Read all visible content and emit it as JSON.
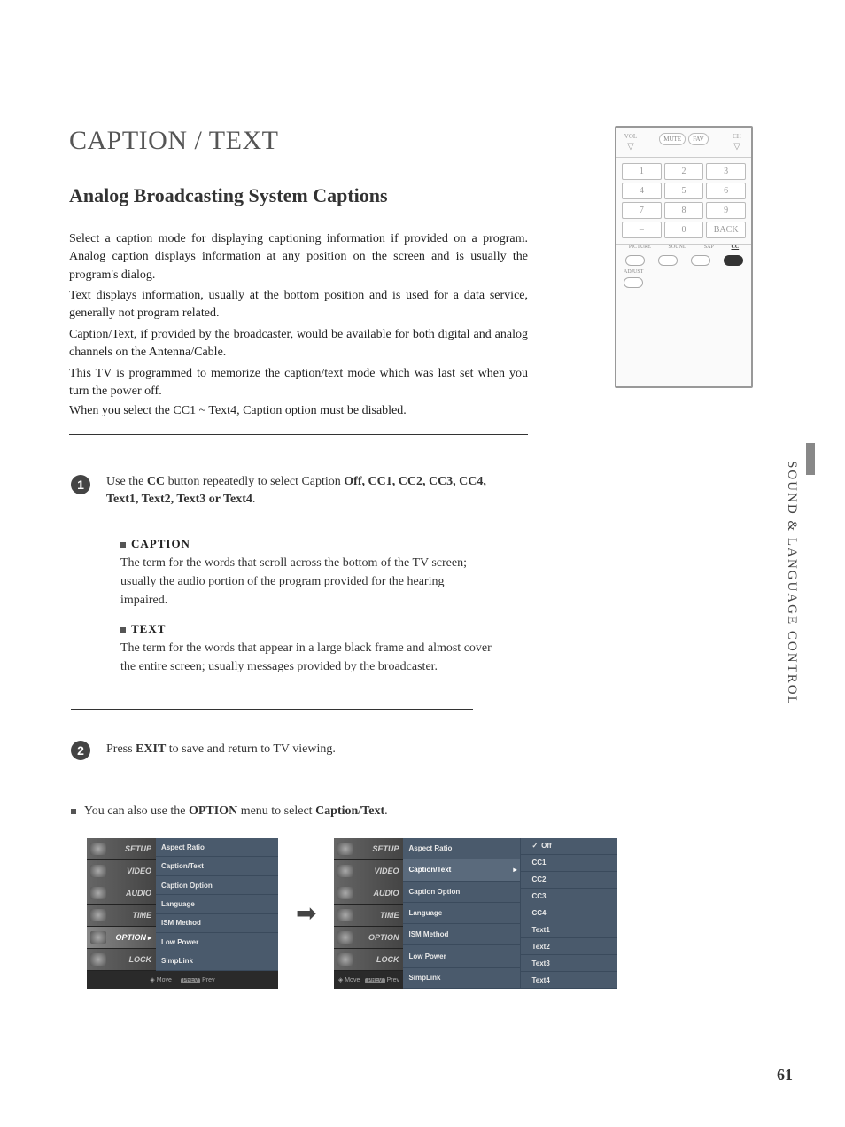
{
  "title": "CAPTION / TEXT",
  "subtitle": "Analog Broadcasting System Captions",
  "paragraphs": {
    "p1": "Select a caption mode for displaying captioning information if provided on a program. Analog caption displays information at any position on the screen and is usually the program's dialog.",
    "p2": "Text displays information, usually at the bottom position and is used for a data service, generally not program related.",
    "p3": "Caption/Text, if provided by the broadcaster, would be available for both digital and analog channels on the Antenna/Cable.",
    "p4": "This TV is programmed to memorize the caption/text mode which was last set when you turn the power off.",
    "p5": "When you select the CC1 ~ Text4, Caption option must be disabled."
  },
  "step1": {
    "num": "1",
    "prefix": "Use the ",
    "button": "CC",
    "mid": " button repeatedly to select Caption ",
    "opts": "Off, CC1, CC2, CC3, CC4, Text1, Text2, Text3 or Text4",
    "suffix": "."
  },
  "captionDef": {
    "heading": "CAPTION",
    "body": "The term for the words that scroll across the bottom of the TV screen; usually the audio portion of the program provided for the hearing impaired."
  },
  "textDef": {
    "heading": "TEXT",
    "body": "The term for the words that appear in a large black frame and almost cover the entire screen; usually messages provided by the broadcaster."
  },
  "step2": {
    "num": "2",
    "prefix": "Press ",
    "button": "EXIT",
    "suffix": " to save and return to TV viewing."
  },
  "note": {
    "prefix": "You can also use the ",
    "button": "OPTION",
    "mid": " menu to select ",
    "target": "Caption/Text",
    "suffix": "."
  },
  "sideText": "SOUND & LANGUAGE CONTROL",
  "pageNumber": "61",
  "remote": {
    "vol": "VOL",
    "mute": "MUTE",
    "fav": "FAV",
    "ch": "CH",
    "nums": [
      "1",
      "2",
      "3",
      "4",
      "5",
      "6",
      "7",
      "8",
      "9",
      "–",
      "0",
      "BACK"
    ],
    "funcLabels": [
      "PICTURE",
      "SOUND",
      "SAP",
      "CC"
    ],
    "adjust": "ADJUST"
  },
  "menu": {
    "sidebar": [
      "SETUP",
      "VIDEO",
      "AUDIO",
      "TIME",
      "OPTION",
      "LOCK"
    ],
    "sidebarActive": "OPTION",
    "options": [
      "Aspect Ratio",
      "Caption/Text",
      "Caption Option",
      "Language",
      "ISM Method",
      "Low Power",
      "SimpLink"
    ],
    "optionSelected": "Caption/Text",
    "values": [
      "Off",
      "CC1",
      "CC2",
      "CC3",
      "CC4",
      "Text1",
      "Text2",
      "Text3",
      "Text4"
    ],
    "valueChecked": "Off",
    "footerMove": "Move",
    "footerPrev": "Prev"
  },
  "colors": {
    "badge": "#444444",
    "menuBg": "#4a5a6c",
    "menuDark": "#2f2f2f"
  }
}
